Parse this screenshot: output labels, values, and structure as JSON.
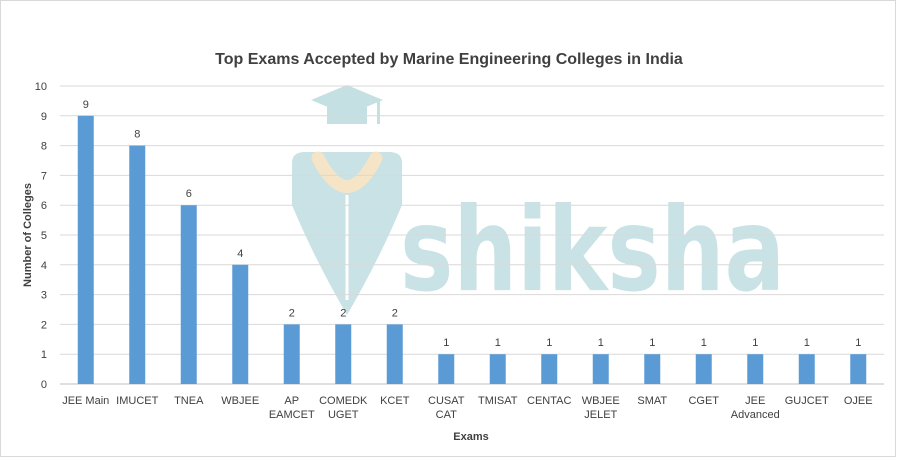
{
  "watermark": {
    "brand_text": "shiksha",
    "color": "#b7d9dd",
    "accent_color": "#f3dcb4"
  },
  "chart_data": {
    "type": "bar",
    "title": "Top Exams Accepted by Marine Engineering Colleges in India",
    "xlabel": "Exams",
    "ylabel": "Number of Colleges",
    "ylim": [
      0,
      10
    ],
    "yticks": [
      0,
      1,
      2,
      3,
      4,
      5,
      6,
      7,
      8,
      9,
      10
    ],
    "grid": true,
    "legend": "none",
    "bar_color": "#5b9bd5",
    "categories": [
      [
        "JEE Main"
      ],
      [
        "IMUCET"
      ],
      [
        "TNEA"
      ],
      [
        "WBJEE"
      ],
      [
        "AP",
        "EAMCET"
      ],
      [
        "COMEDK",
        "UGET"
      ],
      [
        "KCET"
      ],
      [
        "CUSAT",
        "CAT"
      ],
      [
        "TMISAT"
      ],
      [
        "CENTAC"
      ],
      [
        "WBJEE",
        "JELET"
      ],
      [
        "SMAT"
      ],
      [
        "CGET"
      ],
      [
        "JEE",
        "Advanced"
      ],
      [
        "GUJCET"
      ],
      [
        "OJEE"
      ]
    ],
    "values": [
      9,
      8,
      6,
      4,
      2,
      2,
      2,
      1,
      1,
      1,
      1,
      1,
      1,
      1,
      1,
      1
    ]
  }
}
